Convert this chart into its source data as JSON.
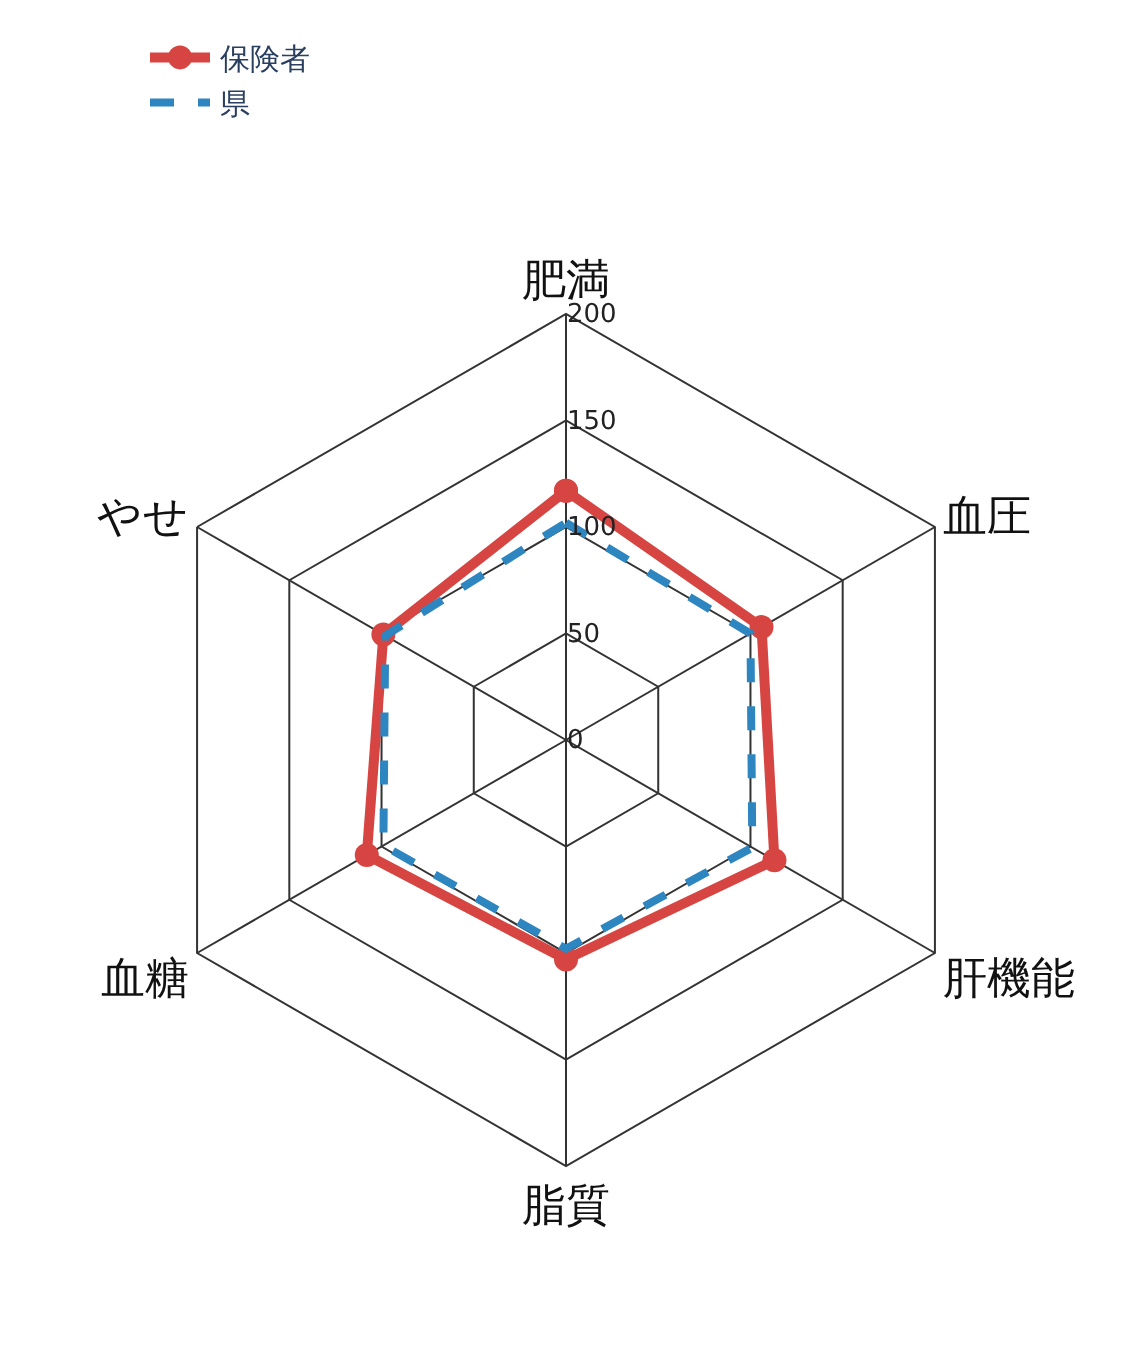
{
  "chart_data": {
    "type": "radar",
    "categories": [
      "肥満",
      "血圧",
      "肝機能",
      "脂質",
      "血糖",
      "やせ"
    ],
    "series": [
      {
        "name": "保険者",
        "color": "#d64541",
        "values": [
          117,
          106,
          113,
          103,
          108,
          99
        ],
        "marker": "circle",
        "line_style": "solid"
      },
      {
        "name": "県",
        "color": "#2e86c1",
        "values": [
          102,
          100,
          101,
          98,
          99,
          98
        ],
        "marker": "none",
        "line_style": "dashed"
      }
    ],
    "ylim": [
      0,
      200
    ],
    "yticks": [
      0,
      50,
      100,
      150,
      200
    ],
    "grid": true,
    "legend": "top left"
  }
}
